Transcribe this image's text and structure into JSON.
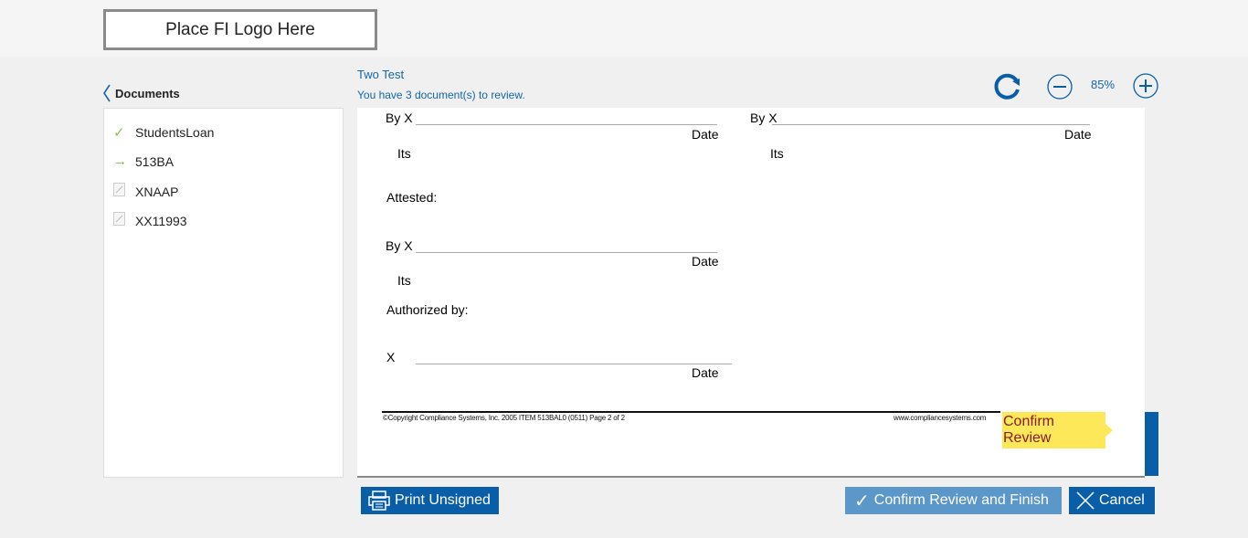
{
  "header": {
    "logo_text": "Place FI Logo Here"
  },
  "sidebar": {
    "back_label": "Documents",
    "items": [
      {
        "label": "StudentsLoan",
        "status_icon": "check-icon",
        "icon_color": "#8bc34a"
      },
      {
        "label": "513BA",
        "status_icon": "arrow-right-icon",
        "icon_color": "#7cb342"
      },
      {
        "label": "XNAAP",
        "status_icon": "document-icon",
        "icon_color": "#bbbbbb"
      },
      {
        "label": "XX11993",
        "status_icon": "document-icon",
        "icon_color": "#bbbbbb"
      }
    ]
  },
  "main": {
    "title": "Two Test",
    "subtitle": "You have 3 document(s) to review.",
    "zoom": "85%"
  },
  "document": {
    "by_x": "By X",
    "date": "Date",
    "its": "Its",
    "attested": "Attested:",
    "authorized_by": "Authorized by:",
    "x": "X",
    "footer_left": "©Copyright Compliance Systems, Inc.  2005  ITEM 513BAL0  (0511)  Page 2 of 2",
    "footer_right": "www.compliancesystems.com",
    "confirm_tag": "Confirm Review"
  },
  "actions": {
    "print": "Print Unsigned",
    "confirm_finish": "Confirm Review and Finish",
    "cancel": "Cancel"
  },
  "colors": {
    "accent": "#0a5ea8",
    "confirm_disabled": "#5b97c9",
    "tag": "#fde85a"
  }
}
